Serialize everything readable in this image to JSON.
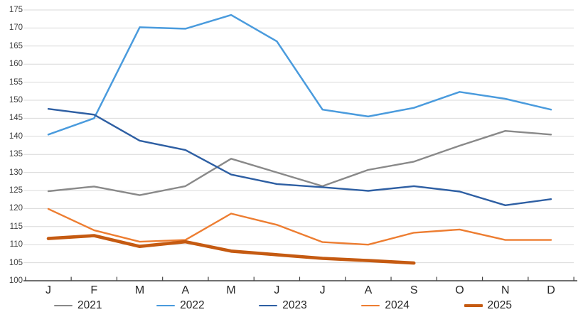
{
  "chart_data": {
    "type": "line",
    "title": "",
    "xlabel": "",
    "ylabel": "",
    "categories": [
      "J",
      "F",
      "M",
      "A",
      "M",
      "J",
      "J",
      "A",
      "S",
      "O",
      "N",
      "D"
    ],
    "y_axis": {
      "min": 100,
      "max": 175,
      "step": 5,
      "tick_labels": [
        "100",
        "105",
        "110",
        "115",
        "120",
        "125",
        "130",
        "135",
        "140",
        "145",
        "150",
        "155",
        "160",
        "165",
        "170",
        "175"
      ]
    },
    "grid": true,
    "legend_position": "bottom",
    "series": [
      {
        "name": "2021",
        "color": "#898989",
        "line_width": 2.4,
        "values": [
          124.8,
          126.1,
          123.7,
          126.2,
          133.8,
          130.0,
          126.2,
          130.7,
          133.0,
          137.4,
          141.5,
          140.5
        ]
      },
      {
        "name": "2022",
        "color": "#4a9bdd",
        "line_width": 2.5,
        "values": [
          140.5,
          145.0,
          170.2,
          169.8,
          173.6,
          166.3,
          147.4,
          145.5,
          147.9,
          152.3,
          150.4,
          147.4
        ]
      },
      {
        "name": "2023",
        "color": "#2e5fa3",
        "line_width": 2.4,
        "values": [
          147.6,
          146.0,
          138.8,
          136.2,
          129.4,
          126.8,
          125.9,
          124.9,
          126.2,
          124.7,
          120.9,
          122.6
        ]
      },
      {
        "name": "2024",
        "color": "#ed7d31",
        "line_width": 2.4,
        "values": [
          119.9,
          114.0,
          110.8,
          111.3,
          118.6,
          115.5,
          110.7,
          110.0,
          113.3,
          114.2,
          111.3,
          111.3
        ]
      },
      {
        "name": "2025",
        "color": "#c55a11",
        "line_width": 4.6,
        "values": [
          111.7,
          112.5,
          109.5,
          110.8,
          108.2,
          107.2,
          106.2,
          105.6,
          104.9
        ]
      }
    ],
    "colors": {
      "gridline": "#d9d9d9",
      "axis_line": "#404040",
      "y_label": "#404040",
      "x_label": "#262626",
      "legend_text": "#262626"
    }
  }
}
